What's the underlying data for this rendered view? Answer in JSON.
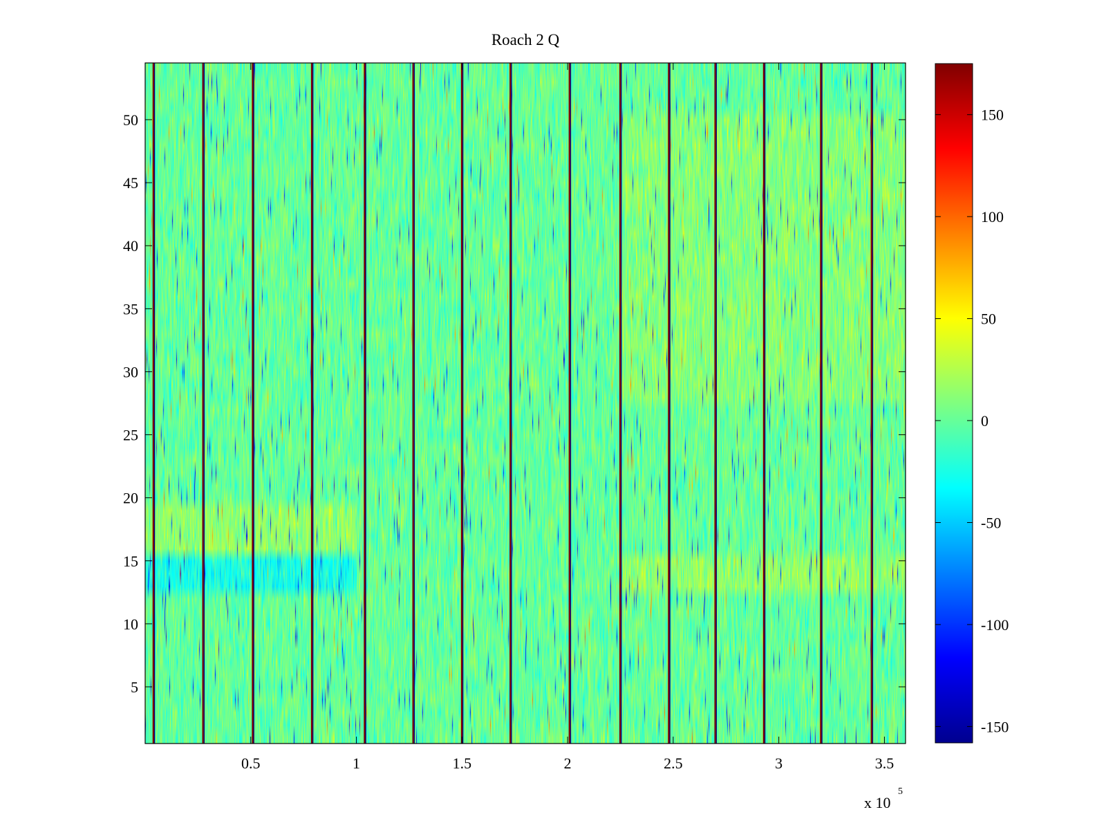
{
  "chart_data": {
    "type": "heatmap",
    "title": "Roach 2 Q",
    "xlabel": "",
    "ylabel": "",
    "x_exponent_label": "x 10",
    "x_exponent": "5",
    "xlim": [
      0,
      360000
    ],
    "ylim": [
      0.5,
      54.5
    ],
    "rows": 54,
    "x_ticks": [
      {
        "value": 50000,
        "label": "0.5"
      },
      {
        "value": 100000,
        "label": "1"
      },
      {
        "value": 150000,
        "label": "1.5"
      },
      {
        "value": 200000,
        "label": "2"
      },
      {
        "value": 250000,
        "label": "2.5"
      },
      {
        "value": 300000,
        "label": "3"
      },
      {
        "value": 350000,
        "label": "3.5"
      }
    ],
    "y_ticks": [
      {
        "value": 5,
        "label": "5"
      },
      {
        "value": 10,
        "label": "10"
      },
      {
        "value": 15,
        "label": "15"
      },
      {
        "value": 20,
        "label": "20"
      },
      {
        "value": 25,
        "label": "25"
      },
      {
        "value": 30,
        "label": "30"
      },
      {
        "value": 35,
        "label": "35"
      },
      {
        "value": 40,
        "label": "40"
      },
      {
        "value": 45,
        "label": "45"
      },
      {
        "value": 50,
        "label": "50"
      }
    ],
    "colorbar": {
      "colormap": "jet",
      "clim": [
        -158,
        175
      ],
      "ticks": [
        {
          "value": 150,
          "label": "150"
        },
        {
          "value": 100,
          "label": "100"
        },
        {
          "value": 50,
          "label": "50"
        },
        {
          "value": 0,
          "label": "0"
        },
        {
          "value": -50,
          "label": "-50"
        },
        {
          "value": -100,
          "label": "-100"
        },
        {
          "value": -150,
          "label": "-150"
        }
      ]
    },
    "spike_columns_x": [
      4000,
      27500,
      51000,
      79000,
      104000,
      127000,
      150000,
      173000,
      201000,
      225000,
      248000,
      270000,
      293000,
      320000,
      344000
    ],
    "spike_value_max": 175,
    "spike_value_min": -158,
    "background_mean": 0,
    "regions": [
      {
        "x_range": [
          0,
          100000
        ],
        "y_range": [
          12.5,
          15.5
        ],
        "mean_value": -25
      },
      {
        "x_range": [
          0,
          100000
        ],
        "y_range": [
          15.5,
          19.5
        ],
        "mean_value": 15
      },
      {
        "x_range": [
          225000,
          360000
        ],
        "y_range": [
          12.5,
          15.5
        ],
        "mean_value": 15
      },
      {
        "x_range": [
          225000,
          360000
        ],
        "y_range": [
          27.5,
          50.5
        ],
        "mean_value": 10
      }
    ]
  }
}
